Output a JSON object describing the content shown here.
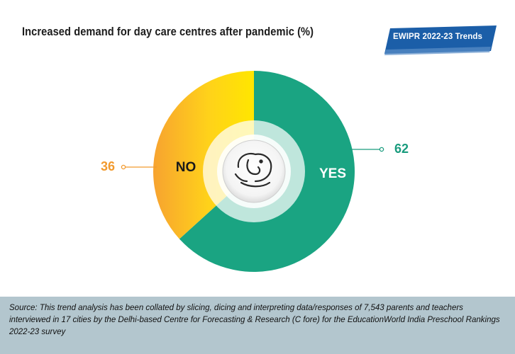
{
  "title": "Increased demand for day care centres after pandemic (%)",
  "badge": "EWIPR 2022-23 Trends",
  "icon": "elephant-logo-icon",
  "colors": {
    "yes": "#1aa482",
    "no_light": "#ffe600",
    "no_dark": "#f7a330",
    "badge": "#1b5ea8",
    "footer_bg": "#b3c6ce"
  },
  "chart_data": {
    "type": "pie",
    "title": "Increased demand for day care centres after pandemic (%)",
    "slices": [
      {
        "name": "YES",
        "value": 62
      },
      {
        "name": "NO",
        "value": 36
      }
    ],
    "inner_labels": [
      "YES",
      "NO"
    ],
    "value_labels": [
      "62",
      "36"
    ]
  },
  "footer": {
    "source": "Source: This trend analysis has been collated by slicing, dicing and interpreting data/responses of 7,543 parents and teachers interviewed in 17 cities by the Delhi-based Centre for Forecasting & Research (C fore) for the EducationWorld India Preschool Rankings 2022-23 survey"
  }
}
